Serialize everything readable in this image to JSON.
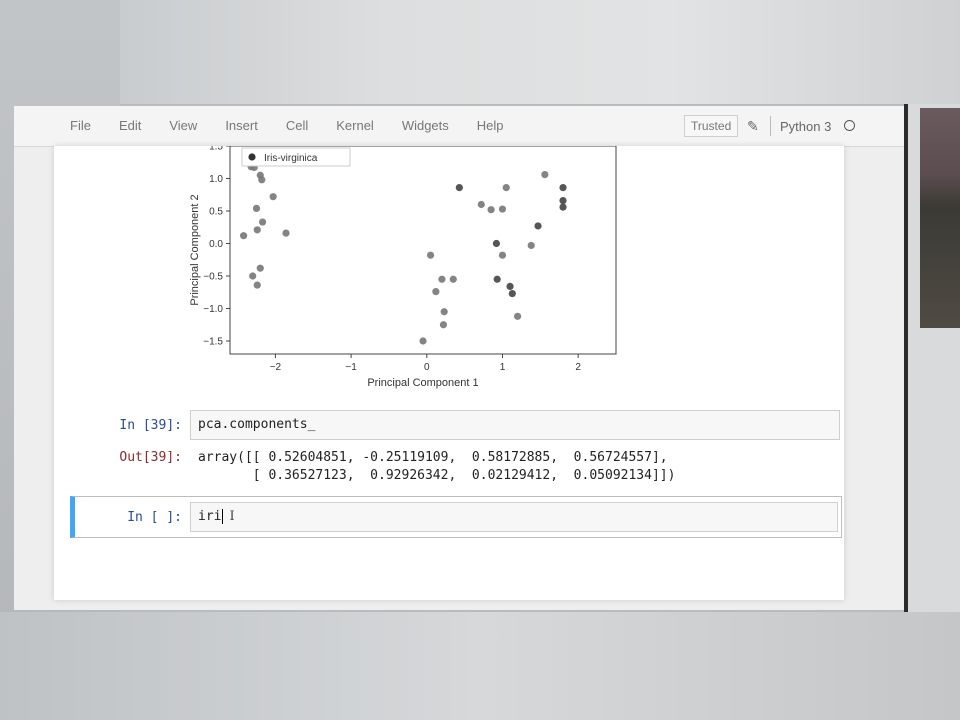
{
  "menubar": {
    "items": [
      "File",
      "Edit",
      "View",
      "Insert",
      "Cell",
      "Kernel",
      "Widgets",
      "Help"
    ],
    "trusted": "Trusted",
    "kernel": "Python 3"
  },
  "chart_data": {
    "type": "scatter",
    "xlabel": "Principal Component 1",
    "ylabel": "Principal Component 2",
    "xlim": [
      -2.6,
      2.5
    ],
    "ylim": [
      -1.7,
      1.5
    ],
    "xticks": [
      "−2",
      "−1",
      "0",
      "1",
      "2"
    ],
    "yticks": [
      "1.5",
      "1.0",
      "0.5",
      "0.0",
      "−0.5",
      "−1.0",
      "−1.5"
    ],
    "legend": {
      "placement": "top-left",
      "entries": [
        "Iris-virginica"
      ]
    },
    "points": [
      {
        "x": -2.32,
        "y": 1.18,
        "c": "#777"
      },
      {
        "x": -2.28,
        "y": 1.17,
        "c": "#777"
      },
      {
        "x": -2.2,
        "y": 1.05,
        "c": "#777"
      },
      {
        "x": -2.18,
        "y": 0.98,
        "c": "#777"
      },
      {
        "x": -2.03,
        "y": 0.72,
        "c": "#777"
      },
      {
        "x": -2.25,
        "y": 0.54,
        "c": "#777"
      },
      {
        "x": -2.17,
        "y": 0.33,
        "c": "#777"
      },
      {
        "x": -2.24,
        "y": 0.21,
        "c": "#777"
      },
      {
        "x": -1.86,
        "y": 0.16,
        "c": "#777"
      },
      {
        "x": -2.42,
        "y": 0.12,
        "c": "#777"
      },
      {
        "x": -2.2,
        "y": -0.38,
        "c": "#777"
      },
      {
        "x": -2.3,
        "y": -0.5,
        "c": "#777"
      },
      {
        "x": -2.24,
        "y": -0.64,
        "c": "#777"
      },
      {
        "x": 0.05,
        "y": -0.18,
        "c": "#777"
      },
      {
        "x": 0.2,
        "y": -0.55,
        "c": "#777"
      },
      {
        "x": 0.35,
        "y": -0.55,
        "c": "#777"
      },
      {
        "x": 0.12,
        "y": -0.74,
        "c": "#777"
      },
      {
        "x": 0.23,
        "y": -1.05,
        "c": "#777"
      },
      {
        "x": 0.22,
        "y": -1.25,
        "c": "#777"
      },
      {
        "x": -0.05,
        "y": -1.5,
        "c": "#777"
      },
      {
        "x": 0.43,
        "y": 0.86,
        "c": "#444"
      },
      {
        "x": 0.72,
        "y": 0.6,
        "c": "#777"
      },
      {
        "x": 0.85,
        "y": 0.52,
        "c": "#777"
      },
      {
        "x": 1.0,
        "y": 0.53,
        "c": "#777"
      },
      {
        "x": 1.05,
        "y": 0.86,
        "c": "#777"
      },
      {
        "x": 0.92,
        "y": 0.0,
        "c": "#444"
      },
      {
        "x": 1.0,
        "y": -0.18,
        "c": "#777"
      },
      {
        "x": 0.93,
        "y": -0.55,
        "c": "#444"
      },
      {
        "x": 1.1,
        "y": -0.66,
        "c": "#444"
      },
      {
        "x": 1.13,
        "y": -0.77,
        "c": "#444"
      },
      {
        "x": 1.2,
        "y": -1.12,
        "c": "#777"
      },
      {
        "x": 1.38,
        "y": -0.03,
        "c": "#777"
      },
      {
        "x": 1.47,
        "y": 0.27,
        "c": "#444"
      },
      {
        "x": 1.56,
        "y": 1.06,
        "c": "#777"
      },
      {
        "x": 1.8,
        "y": 0.86,
        "c": "#444"
      },
      {
        "x": 1.8,
        "y": 0.66,
        "c": "#444"
      },
      {
        "x": 1.8,
        "y": 0.56,
        "c": "#444"
      }
    ]
  },
  "cells": {
    "c39_in_prompt": "In [39]:",
    "c39_code": "pca.components_",
    "c39_out_prompt": "Out[39]:",
    "c39_out_line1": "array([[ 0.52604851, -0.25119109,  0.58172885,  0.56724557],",
    "c39_out_line2": "       [ 0.36527123,  0.92926342,  0.02129412,  0.05092134]])",
    "active_prompt": "In [ ]:",
    "active_code": "iri"
  }
}
